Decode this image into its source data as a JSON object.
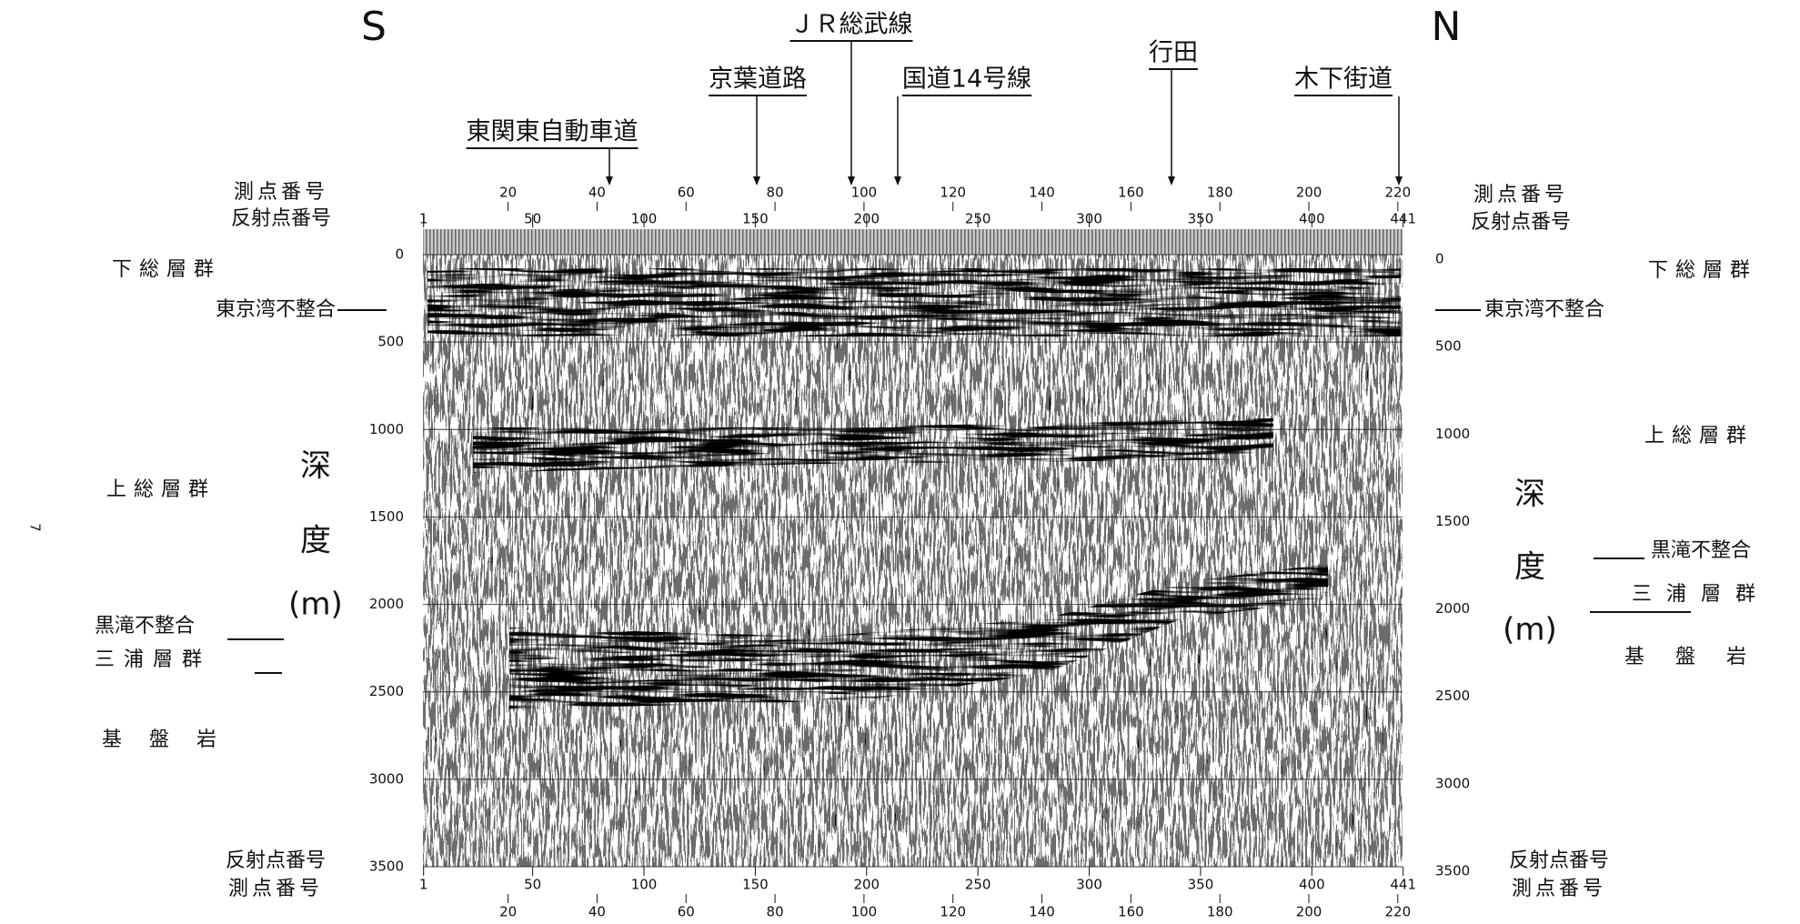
{
  "direction": {
    "south": "S",
    "north": "N"
  },
  "landmarks": [
    {
      "label": "東関東自動車道"
    },
    {
      "label": "京葉道路"
    },
    {
      "label": "ＪＲ総武線"
    },
    {
      "label": "国道14号線"
    },
    {
      "label": "行田"
    },
    {
      "label": "木下街道"
    }
  ],
  "axes": {
    "station_label": "測点番号",
    "reflection_label": "反射点番号",
    "station_ticks": [
      20,
      40,
      60,
      80,
      100,
      120,
      140,
      160,
      180,
      200,
      220
    ],
    "reflection_ticks": [
      1,
      50,
      100,
      150,
      200,
      250,
      300,
      350,
      400,
      441
    ],
    "depth_label": [
      "深",
      "度",
      "(m)"
    ],
    "depth_ticks": [
      0,
      500,
      1000,
      1500,
      2000,
      2500,
      3000,
      3500
    ]
  },
  "units": {
    "shimosa": "下総層群",
    "tokyo_bay_unconformity": "東京湾不整合",
    "kazusa": "上総層群",
    "kurotaki_unconformity": "黒滝不整合",
    "miura": "三浦層群",
    "basement": "基盤岩"
  },
  "page_number": "7"
}
